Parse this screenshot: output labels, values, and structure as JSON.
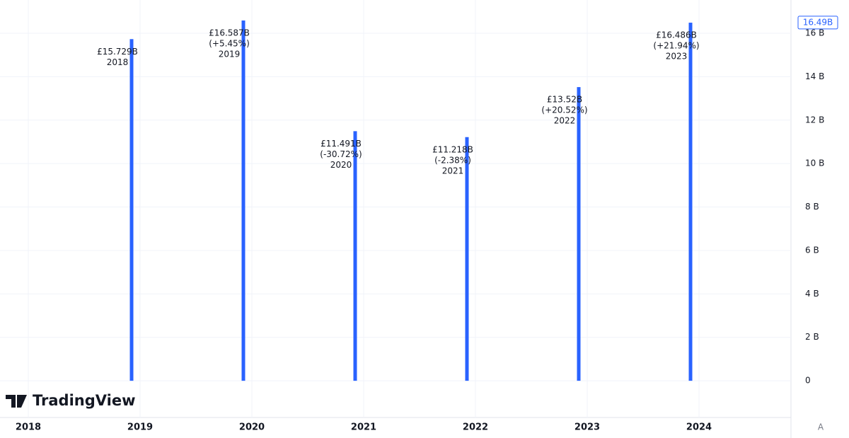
{
  "chart_data": {
    "type": "bar",
    "categories": [
      "2018",
      "2019",
      "2020",
      "2021",
      "2022",
      "2023"
    ],
    "values": [
      15.729,
      16.587,
      11.491,
      11.218,
      13.52,
      16.486
    ],
    "value_labels": [
      "£15.729B",
      "£16.587B",
      "£11.491B",
      "£11.218B",
      "£13.52B",
      "£16.486B"
    ],
    "change_labels": [
      null,
      "(+5.45%)",
      "(-30.72%)",
      "(-2.38%)",
      "(+20.52%)",
      "(+21.94%)"
    ],
    "color": "#2962ff",
    "xticks": [
      "2018",
      "2019",
      "2020",
      "2021",
      "2022",
      "2023",
      "2024"
    ],
    "ylim": [
      -1.69,
      17.53
    ],
    "yticks": [
      0,
      {
        "value": 2,
        "label": "2 B"
      },
      {
        "value": 4,
        "label": "4 B"
      },
      {
        "value": 6,
        "label": "6 B"
      },
      {
        "value": 8,
        "label": "8 B"
      },
      {
        "value": 10,
        "label": "10 B"
      },
      {
        "value": 12,
        "label": "12 B"
      },
      {
        "value": 14,
        "label": "14 B"
      },
      {
        "value": 16,
        "label": "16 B"
      }
    ],
    "last_value": {
      "value": 16.49,
      "label": "16.49B"
    },
    "grid": true,
    "watermark": "TradingView",
    "auto_scale_button": "A"
  }
}
